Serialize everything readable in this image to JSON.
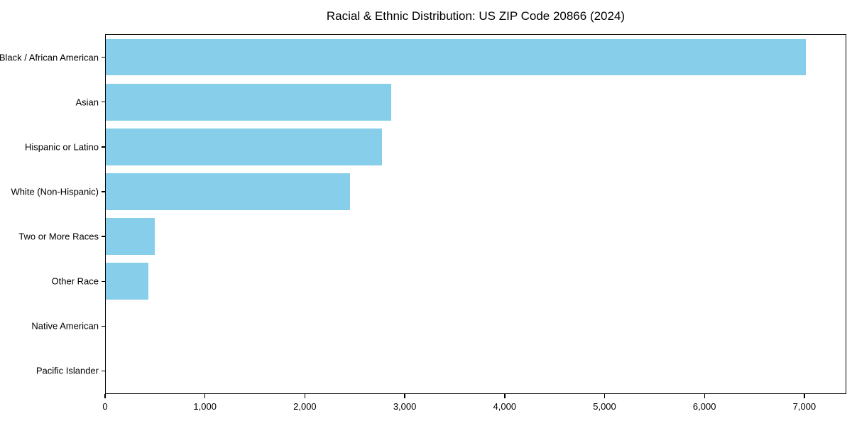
{
  "title": "Racial & Ethnic Distribution: US ZIP Code 20866 (2024)",
  "colors": {
    "bar": "#87CEEB",
    "text": "#000000",
    "axis": "#000000",
    "background": "#ffffff"
  },
  "chart_data": {
    "type": "bar",
    "orientation": "horizontal",
    "title": "Racial & Ethnic Distribution: US ZIP Code 20866 (2024)",
    "categories": [
      "Black / African American",
      "Asian",
      "Hispanic or Latino",
      "White (Non-Hispanic)",
      "Two or More Races",
      "Other Race",
      "Native American",
      "Pacific Islander"
    ],
    "values": [
      7020,
      2860,
      2770,
      2450,
      490,
      425,
      0,
      0
    ],
    "xlabel": "",
    "ylabel": "",
    "xlim": [
      0,
      7420
    ],
    "x_ticks": [
      0,
      1000,
      2000,
      3000,
      4000,
      5000,
      6000,
      7000
    ],
    "x_tick_labels": [
      "0",
      "1,000",
      "2,000",
      "3,000",
      "4,000",
      "5,000",
      "6,000",
      "7,000"
    ],
    "bar_color": "#87CEEB",
    "grid": false,
    "legend_position": "none"
  }
}
